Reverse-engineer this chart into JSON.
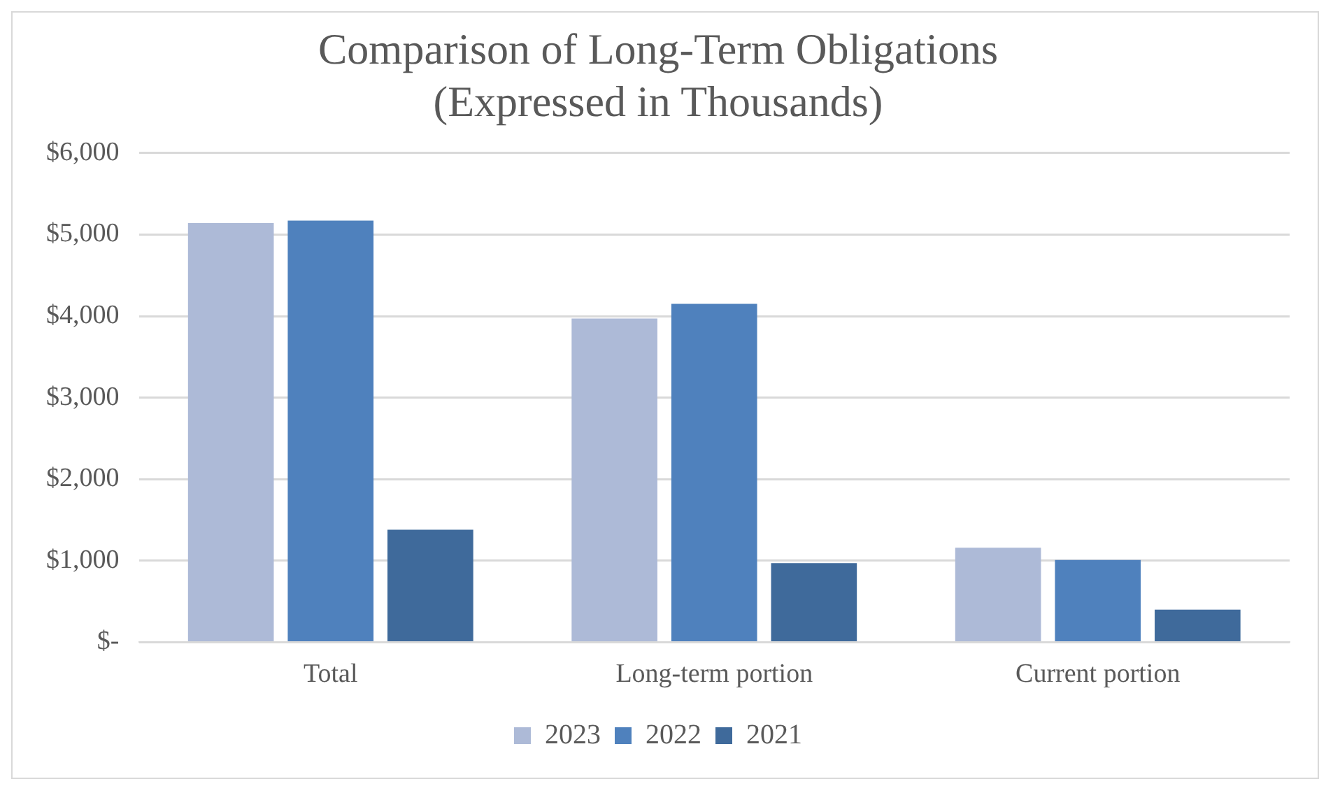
{
  "chart_data": {
    "type": "bar",
    "title": "Comparison of Long-Term Obligations\n(Expressed in Thousands)",
    "categories": [
      "Total",
      "Long-term portion",
      "Current portion"
    ],
    "series": [
      {
        "name": "2023",
        "color": "#adbad7",
        "values": [
          5140,
          3970,
          1160
        ]
      },
      {
        "name": "2022",
        "color": "#4f81bd",
        "values": [
          5170,
          4150,
          1010
        ]
      },
      {
        "name": "2021",
        "color": "#3f6a9b",
        "values": [
          1380,
          970,
          400
        ]
      }
    ],
    "ylim": [
      0,
      6000
    ],
    "yticks": [
      {
        "value": 0,
        "label": "$-"
      },
      {
        "value": 1000,
        "label": "$1,000"
      },
      {
        "value": 2000,
        "label": "$2,000"
      },
      {
        "value": 3000,
        "label": "$3,000"
      },
      {
        "value": 4000,
        "label": "$4,000"
      },
      {
        "value": 5000,
        "label": "$5,000"
      },
      {
        "value": 6000,
        "label": "$6,000"
      }
    ],
    "grid": "y",
    "legend": "bottom"
  }
}
